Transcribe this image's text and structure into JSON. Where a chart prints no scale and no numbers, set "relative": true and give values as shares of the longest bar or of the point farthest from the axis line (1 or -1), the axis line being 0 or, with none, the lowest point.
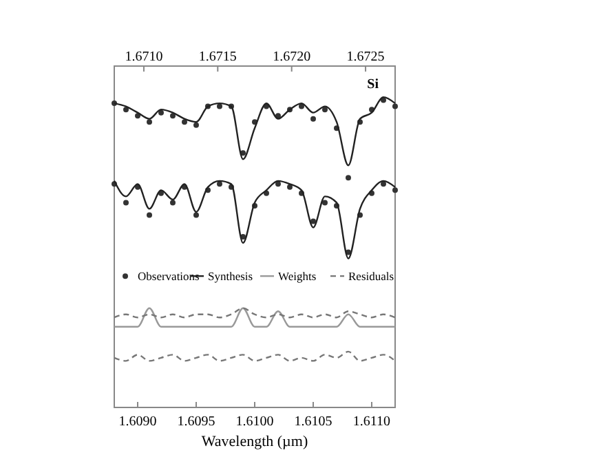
{
  "chart_data": {
    "type": "line",
    "relative": true,
    "xlabel": "Wavelength (µm)",
    "annotations": [
      "Si"
    ],
    "x": [
      1.6088,
      1.6089,
      1.609,
      1.6091,
      1.6092,
      1.6093,
      1.6094,
      1.6095,
      1.6096,
      1.6097,
      1.6098,
      1.6099,
      1.61,
      1.6101,
      1.6102,
      1.6103,
      1.6104,
      1.6105,
      1.6106,
      1.6107,
      1.6108,
      1.6109,
      1.611,
      1.6111,
      1.6112
    ],
    "xlim": [
      1.6088,
      1.6112
    ],
    "xticks": [
      {
        "value": 1.609,
        "label": "1.6090"
      },
      {
        "value": 1.6095,
        "label": "1.6095"
      },
      {
        "value": 1.61,
        "label": "1.6100"
      },
      {
        "value": 1.6105,
        "label": "1.6105"
      },
      {
        "value": 1.611,
        "label": "1.6110"
      }
    ],
    "x2lim": [
      1.6708,
      1.6727
    ],
    "x2ticks": [
      {
        "value": 1.671,
        "label": "1.6710"
      },
      {
        "value": 1.6715,
        "label": "1.6715"
      },
      {
        "value": 1.672,
        "label": "1.6720"
      },
      {
        "value": 1.6725,
        "label": "1.6725"
      }
    ],
    "legend": "center",
    "grid": false,
    "series": [
      {
        "name": "Observations",
        "type": "scatter",
        "marker": "circle",
        "color": "#333333",
        "values": [
          0.98,
          0.96,
          0.94,
          0.92,
          0.95,
          0.94,
          0.92,
          0.91,
          0.97,
          0.97,
          0.97,
          0.82,
          0.92,
          0.97,
          0.94,
          0.96,
          0.97,
          0.93,
          0.96,
          0.9,
          0.74,
          0.92,
          0.96,
          0.99,
          0.97
        ]
      },
      {
        "name": "Synthesis",
        "color": "#222222",
        "line_style": "solid",
        "values": [
          0.98,
          0.97,
          0.95,
          0.93,
          0.96,
          0.95,
          0.93,
          0.92,
          0.97,
          0.98,
          0.97,
          0.8,
          0.9,
          0.98,
          0.93,
          0.96,
          0.98,
          0.95,
          0.97,
          0.92,
          0.78,
          0.93,
          0.95,
          1.0,
          0.98
        ]
      },
      {
        "type": "scatter",
        "marker": "circle",
        "color": "#333333",
        "values": [
          0.72,
          0.66,
          0.71,
          0.62,
          0.69,
          0.66,
          0.71,
          0.62,
          0.7,
          0.72,
          0.71,
          0.55,
          0.65,
          0.69,
          0.72,
          0.71,
          0.69,
          0.6,
          0.66,
          0.65,
          0.5,
          0.62,
          0.69,
          0.72,
          0.7
        ]
      },
      {
        "color": "#222222",
        "line_style": "solid",
        "values": [
          0.73,
          0.68,
          0.72,
          0.64,
          0.7,
          0.67,
          0.72,
          0.63,
          0.71,
          0.73,
          0.72,
          0.53,
          0.66,
          0.7,
          0.73,
          0.72,
          0.7,
          0.58,
          0.68,
          0.66,
          0.48,
          0.64,
          0.7,
          0.73,
          0.71
        ]
      },
      {
        "name": "Weights",
        "color": "#999999",
        "line_style": "solid",
        "values": [
          0.26,
          0.26,
          0.26,
          0.32,
          0.26,
          0.26,
          0.26,
          0.26,
          0.26,
          0.26,
          0.26,
          0.32,
          0.26,
          0.26,
          0.31,
          0.26,
          0.26,
          0.26,
          0.26,
          0.26,
          0.3,
          0.26,
          0.26,
          0.26,
          0.26
        ]
      },
      {
        "name": "Residuals",
        "color": "#777777",
        "line_style": "dashed",
        "values": [
          0.29,
          0.3,
          0.29,
          0.3,
          0.29,
          0.3,
          0.29,
          0.3,
          0.3,
          0.29,
          0.3,
          0.32,
          0.3,
          0.29,
          0.3,
          0.29,
          0.3,
          0.29,
          0.3,
          0.29,
          0.31,
          0.3,
          0.29,
          0.3,
          0.29
        ]
      },
      {
        "color": "#777777",
        "line_style": "dashed",
        "values": [
          0.16,
          0.15,
          0.17,
          0.15,
          0.16,
          0.17,
          0.15,
          0.16,
          0.17,
          0.15,
          0.16,
          0.17,
          0.15,
          0.16,
          0.17,
          0.15,
          0.16,
          0.15,
          0.17,
          0.16,
          0.18,
          0.15,
          0.16,
          0.17,
          0.15
        ]
      }
    ]
  }
}
